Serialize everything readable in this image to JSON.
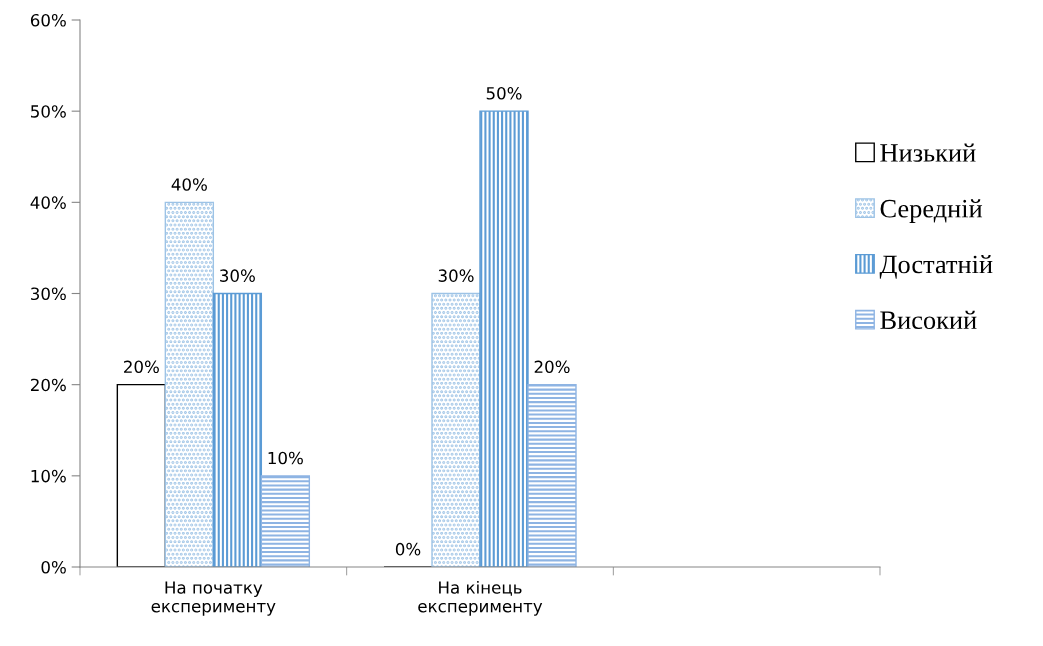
{
  "chart_data": {
    "type": "bar",
    "categories": [
      "На початку\nексперименту",
      "На кінець\nексперименту",
      null
    ],
    "series": [
      {
        "name": "Низький",
        "color": "#000000",
        "values": [
          20,
          0,
          null
        ],
        "value_labels": [
          "20%",
          "0%",
          null
        ]
      },
      {
        "name": "Середній",
        "color": "#9dc3e6",
        "values": [
          40,
          30,
          null
        ],
        "value_labels": [
          "40%",
          "30%",
          null
        ]
      },
      {
        "name": "Достатній",
        "color": "#5b9bd5",
        "values": [
          30,
          50,
          null
        ],
        "value_labels": [
          "30%",
          "50%",
          null
        ]
      },
      {
        "name": "Високий",
        "color": "#8eb4e3",
        "values": [
          10,
          20,
          null
        ],
        "value_labels": [
          "10%",
          "20%",
          null
        ]
      }
    ],
    "ylim": [
      0,
      60
    ],
    "yticks": [
      {
        "value": 0,
        "label": "0%"
      },
      {
        "value": 10,
        "label": "10%"
      },
      {
        "value": 20,
        "label": "20%"
      },
      {
        "value": 30,
        "label": "30%"
      },
      {
        "value": 40,
        "label": "40%"
      },
      {
        "value": 50,
        "label": "50%"
      },
      {
        "value": 60,
        "label": "60%"
      }
    ],
    "grid": false,
    "legend": "right"
  }
}
